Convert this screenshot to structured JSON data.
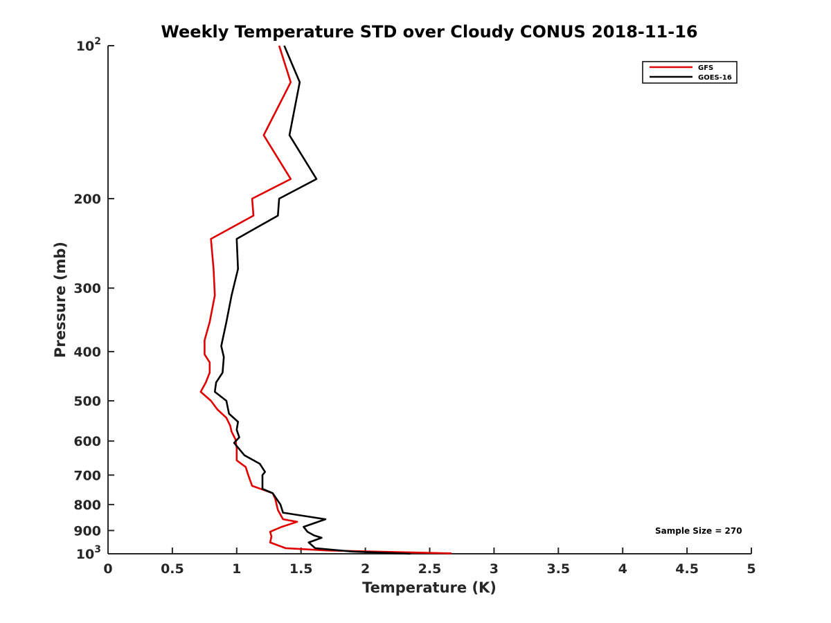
{
  "chart_data": {
    "type": "line",
    "title": "Weekly Temperature STD over Cloudy CONUS 2018-11-16",
    "xlabel": "Temperature (K)",
    "ylabel": "Pressure (mb)",
    "xlim": [
      0,
      5
    ],
    "ylim": [
      100,
      1000
    ],
    "y_scale": "log",
    "y_reversed": true,
    "grid": false,
    "legend_position": "top-right",
    "x_ticks": [
      "0",
      "0.5",
      "1",
      "1.5",
      "2",
      "2.5",
      "3",
      "3.5",
      "4",
      "4.5",
      "5"
    ],
    "x_tick_values": [
      0,
      0.5,
      1,
      1.5,
      2,
      2.5,
      3,
      3.5,
      4,
      4.5,
      5
    ],
    "y_ticks": [
      {
        "value": 100,
        "label": "10",
        "sup": "2"
      },
      {
        "value": 200,
        "label": "200",
        "sup": ""
      },
      {
        "value": 300,
        "label": "300",
        "sup": ""
      },
      {
        "value": 400,
        "label": "400",
        "sup": ""
      },
      {
        "value": 500,
        "label": "500",
        "sup": ""
      },
      {
        "value": 600,
        "label": "600",
        "sup": ""
      },
      {
        "value": 700,
        "label": "700",
        "sup": ""
      },
      {
        "value": 800,
        "label": "800",
        "sup": ""
      },
      {
        "value": 900,
        "label": "900",
        "sup": ""
      },
      {
        "value": 1000,
        "label": "10",
        "sup": "3"
      }
    ],
    "series": [
      {
        "name": "GFS",
        "color": "#e00000",
        "points": [
          [
            1.33,
            100
          ],
          [
            1.42,
            118
          ],
          [
            1.21,
            150
          ],
          [
            1.42,
            183
          ],
          [
            1.12,
            200
          ],
          [
            1.13,
            216
          ],
          [
            0.8,
            240
          ],
          [
            0.82,
            275
          ],
          [
            0.83,
            310
          ],
          [
            0.79,
            350
          ],
          [
            0.75,
            380
          ],
          [
            0.75,
            405
          ],
          [
            0.79,
            420
          ],
          [
            0.79,
            440
          ],
          [
            0.76,
            460
          ],
          [
            0.72,
            480
          ],
          [
            0.8,
            500
          ],
          [
            0.85,
            520
          ],
          [
            0.92,
            540
          ],
          [
            0.95,
            560
          ],
          [
            0.96,
            575
          ],
          [
            0.99,
            595
          ],
          [
            1.0,
            620
          ],
          [
            1.0,
            655
          ],
          [
            1.07,
            675
          ],
          [
            1.09,
            700
          ],
          [
            1.12,
            735
          ],
          [
            1.28,
            760
          ],
          [
            1.3,
            780
          ],
          [
            1.32,
            820
          ],
          [
            1.36,
            855
          ],
          [
            1.47,
            865
          ],
          [
            1.35,
            885
          ],
          [
            1.26,
            905
          ],
          [
            1.27,
            925
          ],
          [
            1.26,
            950
          ],
          [
            1.38,
            975
          ],
          [
            1.7,
            985
          ],
          [
            2.67,
            998
          ]
        ]
      },
      {
        "name": "GOES-16",
        "color": "#000000",
        "points": [
          [
            1.37,
            100
          ],
          [
            1.49,
            118
          ],
          [
            1.41,
            150
          ],
          [
            1.62,
            183
          ],
          [
            1.33,
            200
          ],
          [
            1.32,
            216
          ],
          [
            1.0,
            240
          ],
          [
            1.01,
            275
          ],
          [
            0.96,
            310
          ],
          [
            0.92,
            350
          ],
          [
            0.88,
            390
          ],
          [
            0.9,
            410
          ],
          [
            0.89,
            440
          ],
          [
            0.84,
            460
          ],
          [
            0.83,
            480
          ],
          [
            0.92,
            500
          ],
          [
            0.94,
            530
          ],
          [
            1.01,
            550
          ],
          [
            1.0,
            570
          ],
          [
            1.02,
            590
          ],
          [
            0.98,
            605
          ],
          [
            1.06,
            640
          ],
          [
            1.18,
            665
          ],
          [
            1.22,
            690
          ],
          [
            1.2,
            700
          ],
          [
            1.2,
            725
          ],
          [
            1.2,
            745
          ],
          [
            1.28,
            760
          ],
          [
            1.34,
            800
          ],
          [
            1.36,
            830
          ],
          [
            1.69,
            855
          ],
          [
            1.52,
            885
          ],
          [
            1.55,
            905
          ],
          [
            1.6,
            920
          ],
          [
            1.66,
            930
          ],
          [
            1.56,
            950
          ],
          [
            1.61,
            975
          ],
          [
            1.9,
            990
          ],
          [
            2.35,
            1000
          ]
        ]
      }
    ],
    "annotations": [
      {
        "text": "Sample Size = 270"
      }
    ]
  }
}
